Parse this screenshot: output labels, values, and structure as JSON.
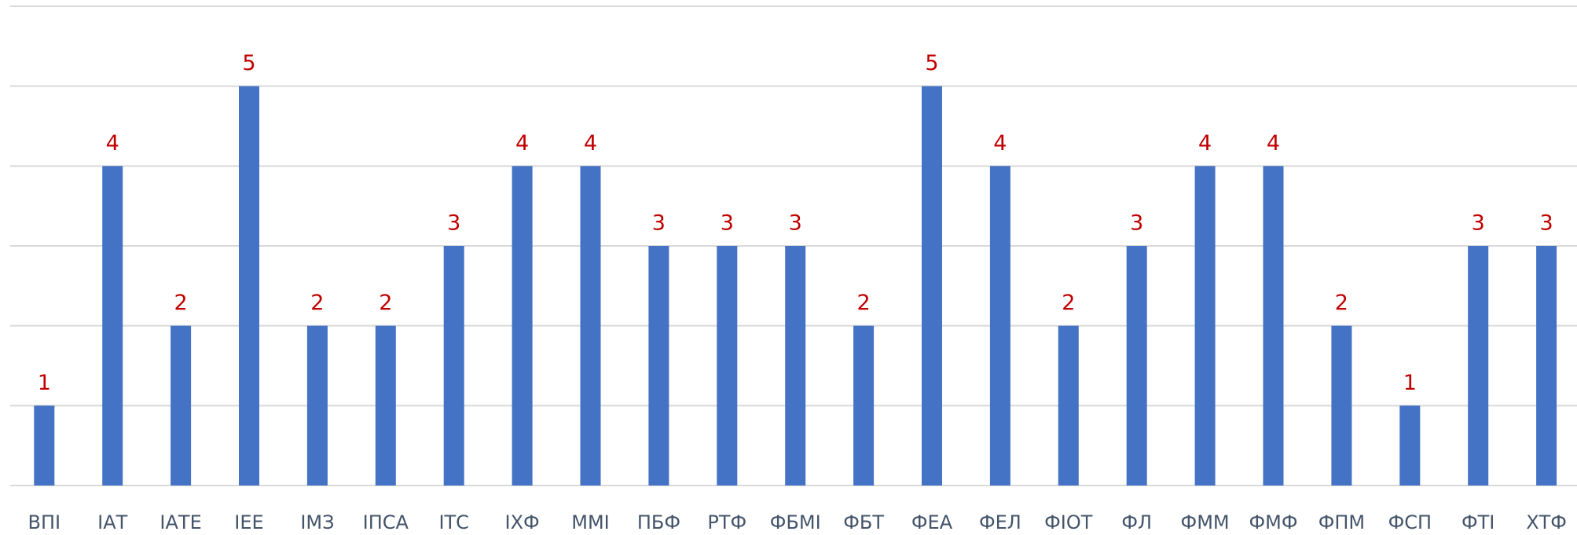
{
  "chart_data": {
    "type": "bar",
    "categories": [
      "ВПІ",
      "ІАТ",
      "ІАТЕ",
      "ІЕЕ",
      "ІМЗ",
      "ІПСА",
      "ІТС",
      "ІХФ",
      "ММІ",
      "ПБФ",
      "РТФ",
      "ФБМІ",
      "ФБТ",
      "ФЕА",
      "ФЕЛ",
      "ФІОТ",
      "ФЛ",
      "ФММ",
      "ФМФ",
      "ФПМ",
      "ФСП",
      "ФТІ",
      "ХТФ"
    ],
    "values": [
      1,
      4,
      2,
      5,
      2,
      2,
      3,
      4,
      4,
      3,
      3,
      3,
      2,
      5,
      4,
      2,
      3,
      4,
      4,
      2,
      1,
      3,
      3
    ],
    "color": "#4472c4",
    "value_label_color": "#c00000",
    "ylim": [
      0,
      6
    ],
    "yticks": [
      0,
      1,
      2,
      3,
      4,
      5,
      6
    ],
    "grid": true
  }
}
